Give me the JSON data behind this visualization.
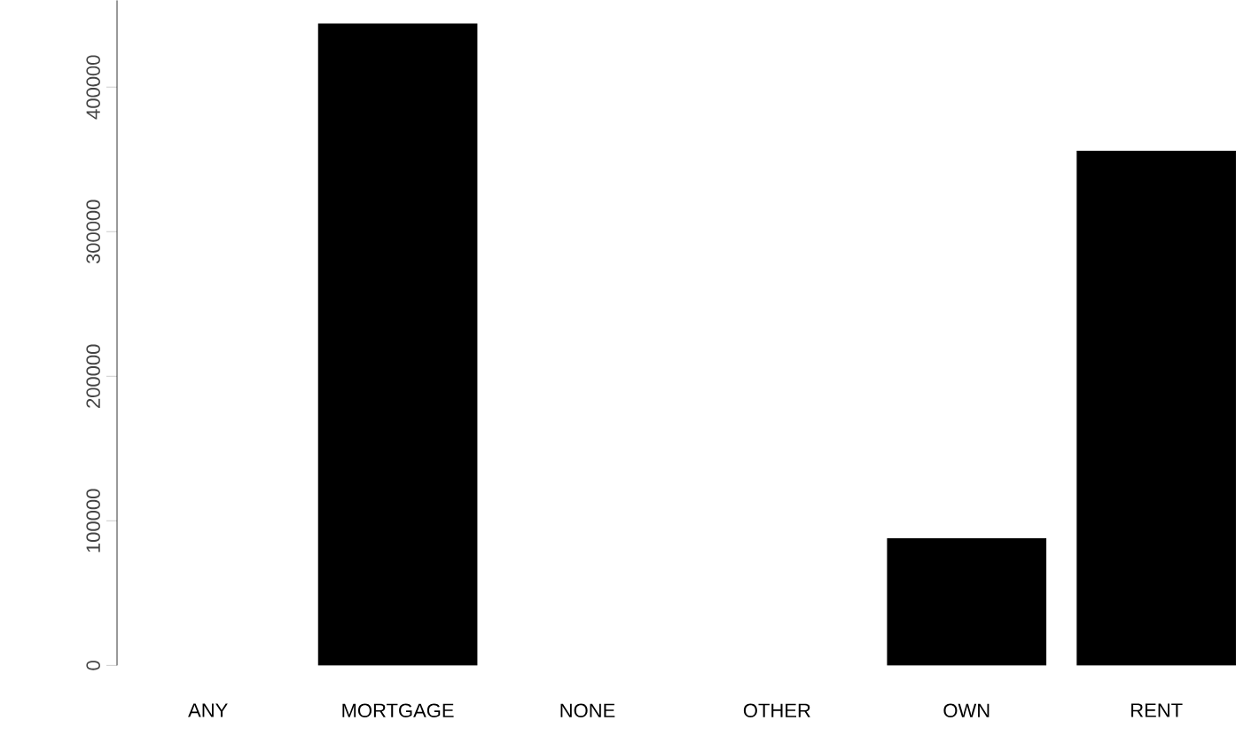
{
  "chart_data": {
    "type": "bar",
    "categories": [
      "ANY",
      "MORTGAGE",
      "NONE",
      "OTHER",
      "OWN",
      "RENT"
    ],
    "values": [
      0,
      444000,
      0,
      0,
      88000,
      356000
    ],
    "color": "#000000",
    "ylim": [
      0,
      460000
    ],
    "yticks": [
      0,
      100000,
      200000,
      300000,
      400000
    ]
  }
}
